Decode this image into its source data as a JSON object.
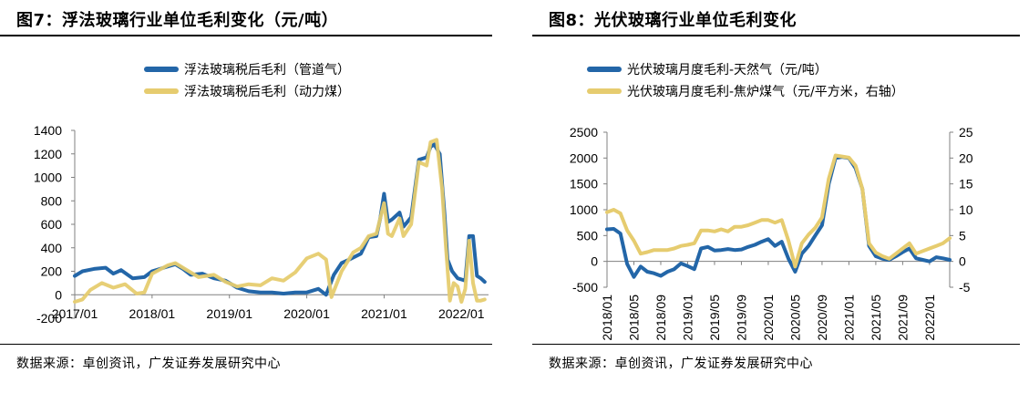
{
  "left": {
    "title": "图7：浮法玻璃行业单位毛利变化（元/吨）",
    "source": "数据来源：卓创资讯，广发证券发展研究中心",
    "legend": [
      "浮法玻璃税后毛利（管道气）",
      "浮法玻璃税后毛利（动力煤）"
    ]
  },
  "right": {
    "title": "图8：光伏玻璃行业单位毛利变化",
    "source": "数据来源：卓创资讯，广发证券发展研究中心",
    "legend": [
      "光伏玻璃月度毛利-天然气（元/吨）",
      "光伏玻璃月度毛利-焦炉煤气（元/平方米，右轴）"
    ]
  },
  "colors": {
    "blue": "#2366a8",
    "yellow": "#e6cc6f",
    "axis": "#808080"
  },
  "chart_data": [
    {
      "type": "line",
      "title": "图7：浮法玻璃行业单位毛利变化（元/吨）",
      "xlabel": "",
      "ylabel": "",
      "x_ticks": [
        "2017/01",
        "2018/01",
        "2019/01",
        "2020/01",
        "2021/01",
        "2022/01"
      ],
      "y_ticks": [
        -200,
        0,
        200,
        400,
        600,
        800,
        1000,
        1200,
        1400
      ],
      "ylim": [
        -200,
        1400
      ],
      "x_range": [
        2017.0,
        2022.35
      ],
      "legend_position": "top",
      "series": [
        {
          "name": "浮法玻璃税后毛利（管道气）",
          "color": "#2366a8",
          "points": [
            [
              2017.0,
              160
            ],
            [
              2017.1,
              200
            ],
            [
              2017.25,
              220
            ],
            [
              2017.4,
              230
            ],
            [
              2017.5,
              180
            ],
            [
              2017.6,
              210
            ],
            [
              2017.75,
              140
            ],
            [
              2017.9,
              150
            ],
            [
              2018.0,
              200
            ],
            [
              2018.15,
              230
            ],
            [
              2018.3,
              260
            ],
            [
              2018.4,
              220
            ],
            [
              2018.5,
              170
            ],
            [
              2018.65,
              180
            ],
            [
              2018.8,
              140
            ],
            [
              2018.95,
              120
            ],
            [
              2019.1,
              60
            ],
            [
              2019.25,
              30
            ],
            [
              2019.4,
              20
            ],
            [
              2019.55,
              20
            ],
            [
              2019.7,
              10
            ],
            [
              2019.85,
              20
            ],
            [
              2020.0,
              20
            ],
            [
              2020.15,
              50
            ],
            [
              2020.25,
              0
            ],
            [
              2020.35,
              170
            ],
            [
              2020.45,
              270
            ],
            [
              2020.55,
              300
            ],
            [
              2020.7,
              350
            ],
            [
              2020.8,
              490
            ],
            [
              2020.9,
              500
            ],
            [
              2020.95,
              650
            ],
            [
              2021.0,
              860
            ],
            [
              2021.05,
              620
            ],
            [
              2021.1,
              640
            ],
            [
              2021.2,
              700
            ],
            [
              2021.25,
              580
            ],
            [
              2021.35,
              660
            ],
            [
              2021.45,
              1150
            ],
            [
              2021.55,
              1170
            ],
            [
              2021.6,
              1260
            ],
            [
              2021.65,
              1280
            ],
            [
              2021.72,
              1200
            ],
            [
              2021.78,
              700
            ],
            [
              2021.82,
              300
            ],
            [
              2021.88,
              200
            ],
            [
              2021.95,
              140
            ],
            [
              2022.05,
              120
            ],
            [
              2022.1,
              500
            ],
            [
              2022.15,
              500
            ],
            [
              2022.2,
              160
            ],
            [
              2022.25,
              140
            ],
            [
              2022.3,
              110
            ]
          ]
        },
        {
          "name": "浮法玻璃税后毛利（动力煤）",
          "color": "#e6cc6f",
          "points": [
            [
              2017.0,
              -60
            ],
            [
              2017.1,
              -40
            ],
            [
              2017.2,
              40
            ],
            [
              2017.35,
              100
            ],
            [
              2017.5,
              60
            ],
            [
              2017.65,
              90
            ],
            [
              2017.8,
              10
            ],
            [
              2017.9,
              20
            ],
            [
              2018.0,
              180
            ],
            [
              2018.2,
              250
            ],
            [
              2018.3,
              270
            ],
            [
              2018.45,
              210
            ],
            [
              2018.6,
              150
            ],
            [
              2018.8,
              170
            ],
            [
              2018.95,
              110
            ],
            [
              2019.1,
              70
            ],
            [
              2019.25,
              90
            ],
            [
              2019.4,
              80
            ],
            [
              2019.55,
              140
            ],
            [
              2019.7,
              120
            ],
            [
              2019.85,
              190
            ],
            [
              2020.0,
              310
            ],
            [
              2020.15,
              350
            ],
            [
              2020.25,
              300
            ],
            [
              2020.32,
              -20
            ],
            [
              2020.45,
              200
            ],
            [
              2020.6,
              360
            ],
            [
              2020.7,
              400
            ],
            [
              2020.8,
              500
            ],
            [
              2020.9,
              520
            ],
            [
              2021.0,
              780
            ],
            [
              2021.05,
              520
            ],
            [
              2021.1,
              500
            ],
            [
              2021.2,
              650
            ],
            [
              2021.25,
              500
            ],
            [
              2021.35,
              600
            ],
            [
              2021.45,
              1130
            ],
            [
              2021.55,
              1100
            ],
            [
              2021.6,
              1300
            ],
            [
              2021.68,
              1320
            ],
            [
              2021.75,
              900
            ],
            [
              2021.8,
              400
            ],
            [
              2021.85,
              -50
            ],
            [
              2021.9,
              100
            ],
            [
              2021.95,
              70
            ],
            [
              2022.0,
              -60
            ],
            [
              2022.05,
              50
            ],
            [
              2022.1,
              460
            ],
            [
              2022.15,
              100
            ],
            [
              2022.2,
              -50
            ],
            [
              2022.25,
              -50
            ],
            [
              2022.3,
              -40
            ]
          ]
        }
      ]
    },
    {
      "type": "line",
      "title": "图8：光伏玻璃行业单位毛利变化",
      "xlabel": "",
      "ylabel": "",
      "x_ticks": [
        "2018/01",
        "2018/05",
        "2018/09",
        "2019/01",
        "2019/05",
        "2019/09",
        "2020/01",
        "2020/05",
        "2020/09",
        "2021/01",
        "2021/05",
        "2021/09",
        "2022/01"
      ],
      "y_ticks_left": [
        -500,
        0,
        500,
        1000,
        1500,
        2000,
        2500
      ],
      "y_ticks_right": [
        -5,
        0,
        5,
        10,
        15,
        20,
        25
      ],
      "ylim_left": [
        -500,
        2500
      ],
      "ylim_right": [
        -5,
        25
      ],
      "x_range": [
        "2018/01",
        "2022/04"
      ],
      "legend_position": "top",
      "series": [
        {
          "name": "光伏玻璃月度毛利-天然气（元/吨）",
          "color": "#2366a8",
          "axis": "left",
          "points": [
            [
              "2018/01",
              620
            ],
            [
              "2018/02",
              630
            ],
            [
              "2018/03",
              540
            ],
            [
              "2018/04",
              -50
            ],
            [
              "2018/05",
              -300
            ],
            [
              "2018/06",
              -100
            ],
            [
              "2018/07",
              -200
            ],
            [
              "2018/08",
              -230
            ],
            [
              "2018/09",
              -280
            ],
            [
              "2018/10",
              -200
            ],
            [
              "2018/11",
              -150
            ],
            [
              "2018/12",
              -40
            ],
            [
              "2019/01",
              -90
            ],
            [
              "2019/02",
              -150
            ],
            [
              "2019/03",
              250
            ],
            [
              "2019/04",
              280
            ],
            [
              "2019/05",
              210
            ],
            [
              "2019/06",
              220
            ],
            [
              "2019/07",
              240
            ],
            [
              "2019/08",
              220
            ],
            [
              "2019/09",
              230
            ],
            [
              "2019/10",
              280
            ],
            [
              "2019/11",
              320
            ],
            [
              "2019/12",
              380
            ],
            [
              "2020/01",
              430
            ],
            [
              "2020/02",
              300
            ],
            [
              "2020/03",
              380
            ],
            [
              "2020/04",
              50
            ],
            [
              "2020/05",
              -200
            ],
            [
              "2020/06",
              150
            ],
            [
              "2020/07",
              300
            ],
            [
              "2020/08",
              500
            ],
            [
              "2020/09",
              700
            ],
            [
              "2020/10",
              1500
            ],
            [
              "2020/11",
              2000
            ],
            [
              "2020/12",
              2020
            ],
            [
              "2021/01",
              2000
            ],
            [
              "2021/02",
              1800
            ],
            [
              "2021/03",
              1400
            ],
            [
              "2021/04",
              300
            ],
            [
              "2021/05",
              100
            ],
            [
              "2021/06",
              50
            ],
            [
              "2021/07",
              30
            ],
            [
              "2021/08",
              100
            ],
            [
              "2021/09",
              180
            ],
            [
              "2021/10",
              250
            ],
            [
              "2021/11",
              60
            ],
            [
              "2021/12",
              30
            ],
            [
              "2022/01",
              0
            ],
            [
              "2022/02",
              80
            ],
            [
              "2022/03",
              60
            ],
            [
              "2022/04",
              30
            ]
          ]
        },
        {
          "name": "光伏玻璃月度毛利-焦炉煤气（元/平方米，右轴）",
          "color": "#e6cc6f",
          "axis": "right",
          "points": [
            [
              "2018/01",
              9.5
            ],
            [
              "2018/02",
              10
            ],
            [
              "2018/03",
              9.3
            ],
            [
              "2018/04",
              6
            ],
            [
              "2018/05",
              4
            ],
            [
              "2018/06",
              1.5
            ],
            [
              "2018/07",
              1.8
            ],
            [
              "2018/08",
              2.2
            ],
            [
              "2018/09",
              2.2
            ],
            [
              "2018/10",
              2.2
            ],
            [
              "2018/11",
              2.5
            ],
            [
              "2018/12",
              3
            ],
            [
              "2019/01",
              3.2
            ],
            [
              "2019/02",
              3.5
            ],
            [
              "2019/03",
              6
            ],
            [
              "2019/04",
              6
            ],
            [
              "2019/05",
              5.8
            ],
            [
              "2019/06",
              6.2
            ],
            [
              "2019/07",
              5.8
            ],
            [
              "2019/08",
              6.7
            ],
            [
              "2019/09",
              6.7
            ],
            [
              "2019/10",
              7
            ],
            [
              "2019/11",
              7.5
            ],
            [
              "2019/12",
              8
            ],
            [
              "2020/01",
              8
            ],
            [
              "2020/02",
              7.5
            ],
            [
              "2020/03",
              8
            ],
            [
              "2020/04",
              4
            ],
            [
              "2020/05",
              -1
            ],
            [
              "2020/06",
              3.5
            ],
            [
              "2020/07",
              5.2
            ],
            [
              "2020/08",
              6.5
            ],
            [
              "2020/09",
              8.5
            ],
            [
              "2020/10",
              16
            ],
            [
              "2020/11",
              20.5
            ],
            [
              "2020/12",
              20.3
            ],
            [
              "2021/01",
              20.1
            ],
            [
              "2021/02",
              18.5
            ],
            [
              "2021/03",
              14
            ],
            [
              "2021/04",
              3.5
            ],
            [
              "2021/05",
              1.7
            ],
            [
              "2021/06",
              1
            ],
            [
              "2021/07",
              0.5
            ],
            [
              "2021/08",
              1.5
            ],
            [
              "2021/09",
              2.5
            ],
            [
              "2021/10",
              3.5
            ],
            [
              "2021/11",
              1.5
            ],
            [
              "2021/12",
              2
            ],
            [
              "2022/01",
              2.5
            ],
            [
              "2022/02",
              3
            ],
            [
              "2022/03",
              3.5
            ],
            [
              "2022/04",
              4.5
            ]
          ]
        }
      ]
    }
  ]
}
